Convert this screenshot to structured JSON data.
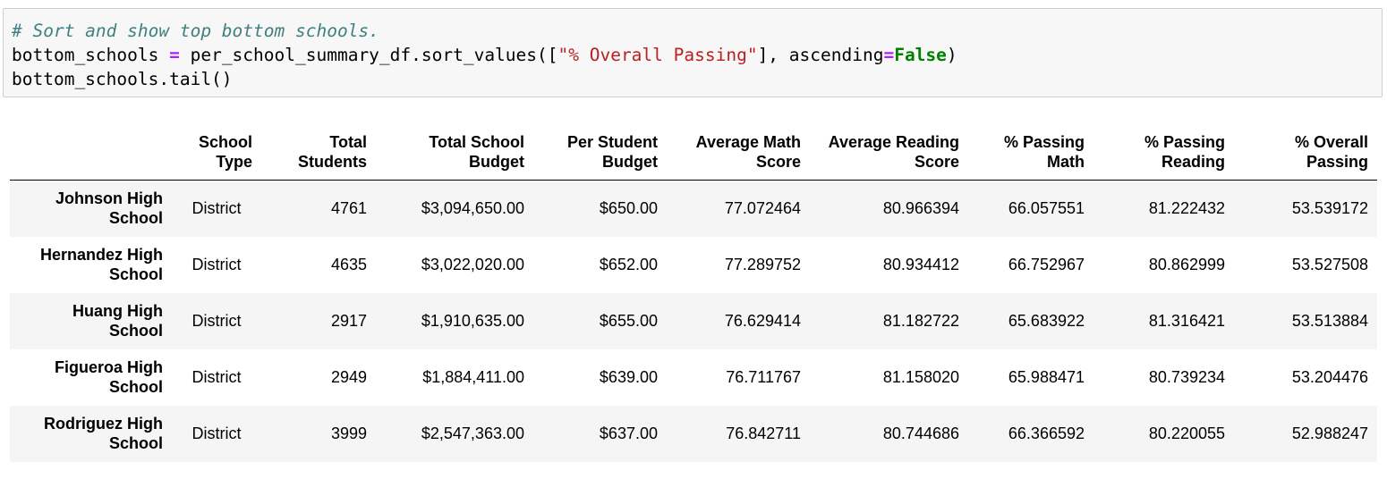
{
  "code": {
    "comment": "# Sort and show top bottom schools.",
    "line2": {
      "var": "bottom_schools ",
      "op": "=",
      "call_start": " per_school_summary_df.sort_values([",
      "string": "\"% Overall Passing\"",
      "mid": "], ascending",
      "op2": "=",
      "keyword": "False",
      "end": ")"
    },
    "line3": "bottom_schools.tail()"
  },
  "table": {
    "columns": [
      {
        "line1": "",
        "line2": ""
      },
      {
        "line1": "School",
        "line2": "Type"
      },
      {
        "line1": "Total",
        "line2": "Students"
      },
      {
        "line1": "Total School",
        "line2": "Budget"
      },
      {
        "line1": "Per Student",
        "line2": "Budget"
      },
      {
        "line1": "Average Math",
        "line2": "Score"
      },
      {
        "line1": "Average Reading",
        "line2": "Score"
      },
      {
        "line1": "% Passing",
        "line2": "Math"
      },
      {
        "line1": "% Passing",
        "line2": "Reading"
      },
      {
        "line1": "% Overall",
        "line2": "Passing"
      }
    ],
    "rows": [
      {
        "school_l1": "Johnson High",
        "school_l2": "School",
        "type": "District",
        "students": "4761",
        "budget": "$3,094,650.00",
        "per_student": "$650.00",
        "math": "77.072464",
        "reading": "80.966394",
        "pass_math": "66.057551",
        "pass_reading": "81.222432",
        "overall": "53.539172"
      },
      {
        "school_l1": "Hernandez High",
        "school_l2": "School",
        "type": "District",
        "students": "4635",
        "budget": "$3,022,020.00",
        "per_student": "$652.00",
        "math": "77.289752",
        "reading": "80.934412",
        "pass_math": "66.752967",
        "pass_reading": "80.862999",
        "overall": "53.527508"
      },
      {
        "school_l1": "Huang High",
        "school_l2": "School",
        "type": "District",
        "students": "2917",
        "budget": "$1,910,635.00",
        "per_student": "$655.00",
        "math": "76.629414",
        "reading": "81.182722",
        "pass_math": "65.683922",
        "pass_reading": "81.316421",
        "overall": "53.513884"
      },
      {
        "school_l1": "Figueroa High",
        "school_l2": "School",
        "type": "District",
        "students": "2949",
        "budget": "$1,884,411.00",
        "per_student": "$639.00",
        "math": "76.711767",
        "reading": "81.158020",
        "pass_math": "65.988471",
        "pass_reading": "80.739234",
        "overall": "53.204476"
      },
      {
        "school_l1": "Rodriguez High",
        "school_l2": "School",
        "type": "District",
        "students": "3999",
        "budget": "$2,547,363.00",
        "per_student": "$637.00",
        "math": "76.842711",
        "reading": "80.744686",
        "pass_math": "66.366592",
        "pass_reading": "80.220055",
        "overall": "52.988247"
      }
    ]
  }
}
